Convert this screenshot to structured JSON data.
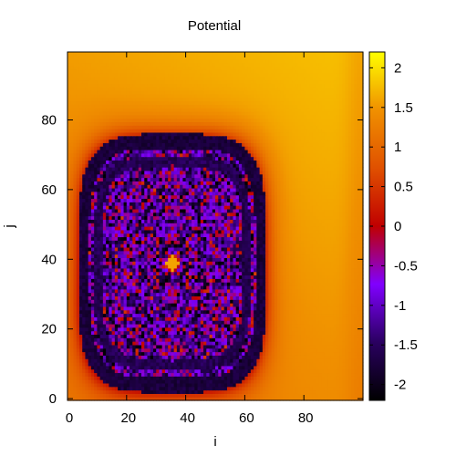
{
  "chart_data": {
    "type": "heatmap",
    "title": "Potential",
    "xlabel": "i",
    "ylabel": "j",
    "xlim": [
      0,
      99
    ],
    "ylim": [
      0,
      99
    ],
    "xticks": [
      0,
      20,
      40,
      60,
      80
    ],
    "yticks": [
      0,
      20,
      40,
      60,
      80
    ],
    "color_scale": {
      "min": -2.2,
      "max": 2.2,
      "ticks": [
        -2,
        -1.5,
        -1,
        -0.5,
        0,
        0.5,
        1,
        1.5,
        2
      ],
      "palette": "black-purple-red-orange-yellow",
      "stops": [
        "#000000",
        "#2a0060",
        "#8000ff",
        "#c00000",
        "#e05000",
        "#f09000",
        "#ffff00"
      ]
    },
    "grid": false,
    "legend": "colorbar-right",
    "description_values": {
      "background_level": 1.2,
      "ring_level": -1.9,
      "interior_mean": -1.0,
      "interior_noise": 1.6
    }
  }
}
